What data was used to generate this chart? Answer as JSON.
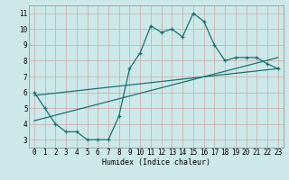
{
  "xlabel": "Humidex (Indice chaleur)",
  "ylabel": "",
  "bg_color": "#cce8e8",
  "grid_color": "#b8d4d4",
  "line_color": "#1a7070",
  "xlim": [
    -0.5,
    23.5
  ],
  "ylim": [
    2.5,
    11.5
  ],
  "xticks": [
    0,
    1,
    2,
    3,
    4,
    5,
    6,
    7,
    8,
    9,
    10,
    11,
    12,
    13,
    14,
    15,
    16,
    17,
    18,
    19,
    20,
    21,
    22,
    23
  ],
  "yticks": [
    3,
    4,
    5,
    6,
    7,
    8,
    9,
    10,
    11
  ],
  "curve_x": [
    0,
    1,
    2,
    3,
    4,
    5,
    6,
    7,
    8,
    9,
    10,
    11,
    12,
    13,
    14,
    15,
    16,
    17,
    18,
    19,
    20,
    21,
    22,
    23
  ],
  "curve_y": [
    6.0,
    5.0,
    4.0,
    3.5,
    3.5,
    3.0,
    3.0,
    3.0,
    4.5,
    7.5,
    8.5,
    10.2,
    9.8,
    10.0,
    9.5,
    11.0,
    10.5,
    9.0,
    8.0,
    8.2,
    8.2,
    8.2,
    7.8,
    7.5
  ],
  "line1_x": [
    0,
    23
  ],
  "line1_y": [
    5.8,
    7.5
  ],
  "line2_x": [
    0,
    23
  ],
  "line2_y": [
    4.2,
    8.2
  ]
}
